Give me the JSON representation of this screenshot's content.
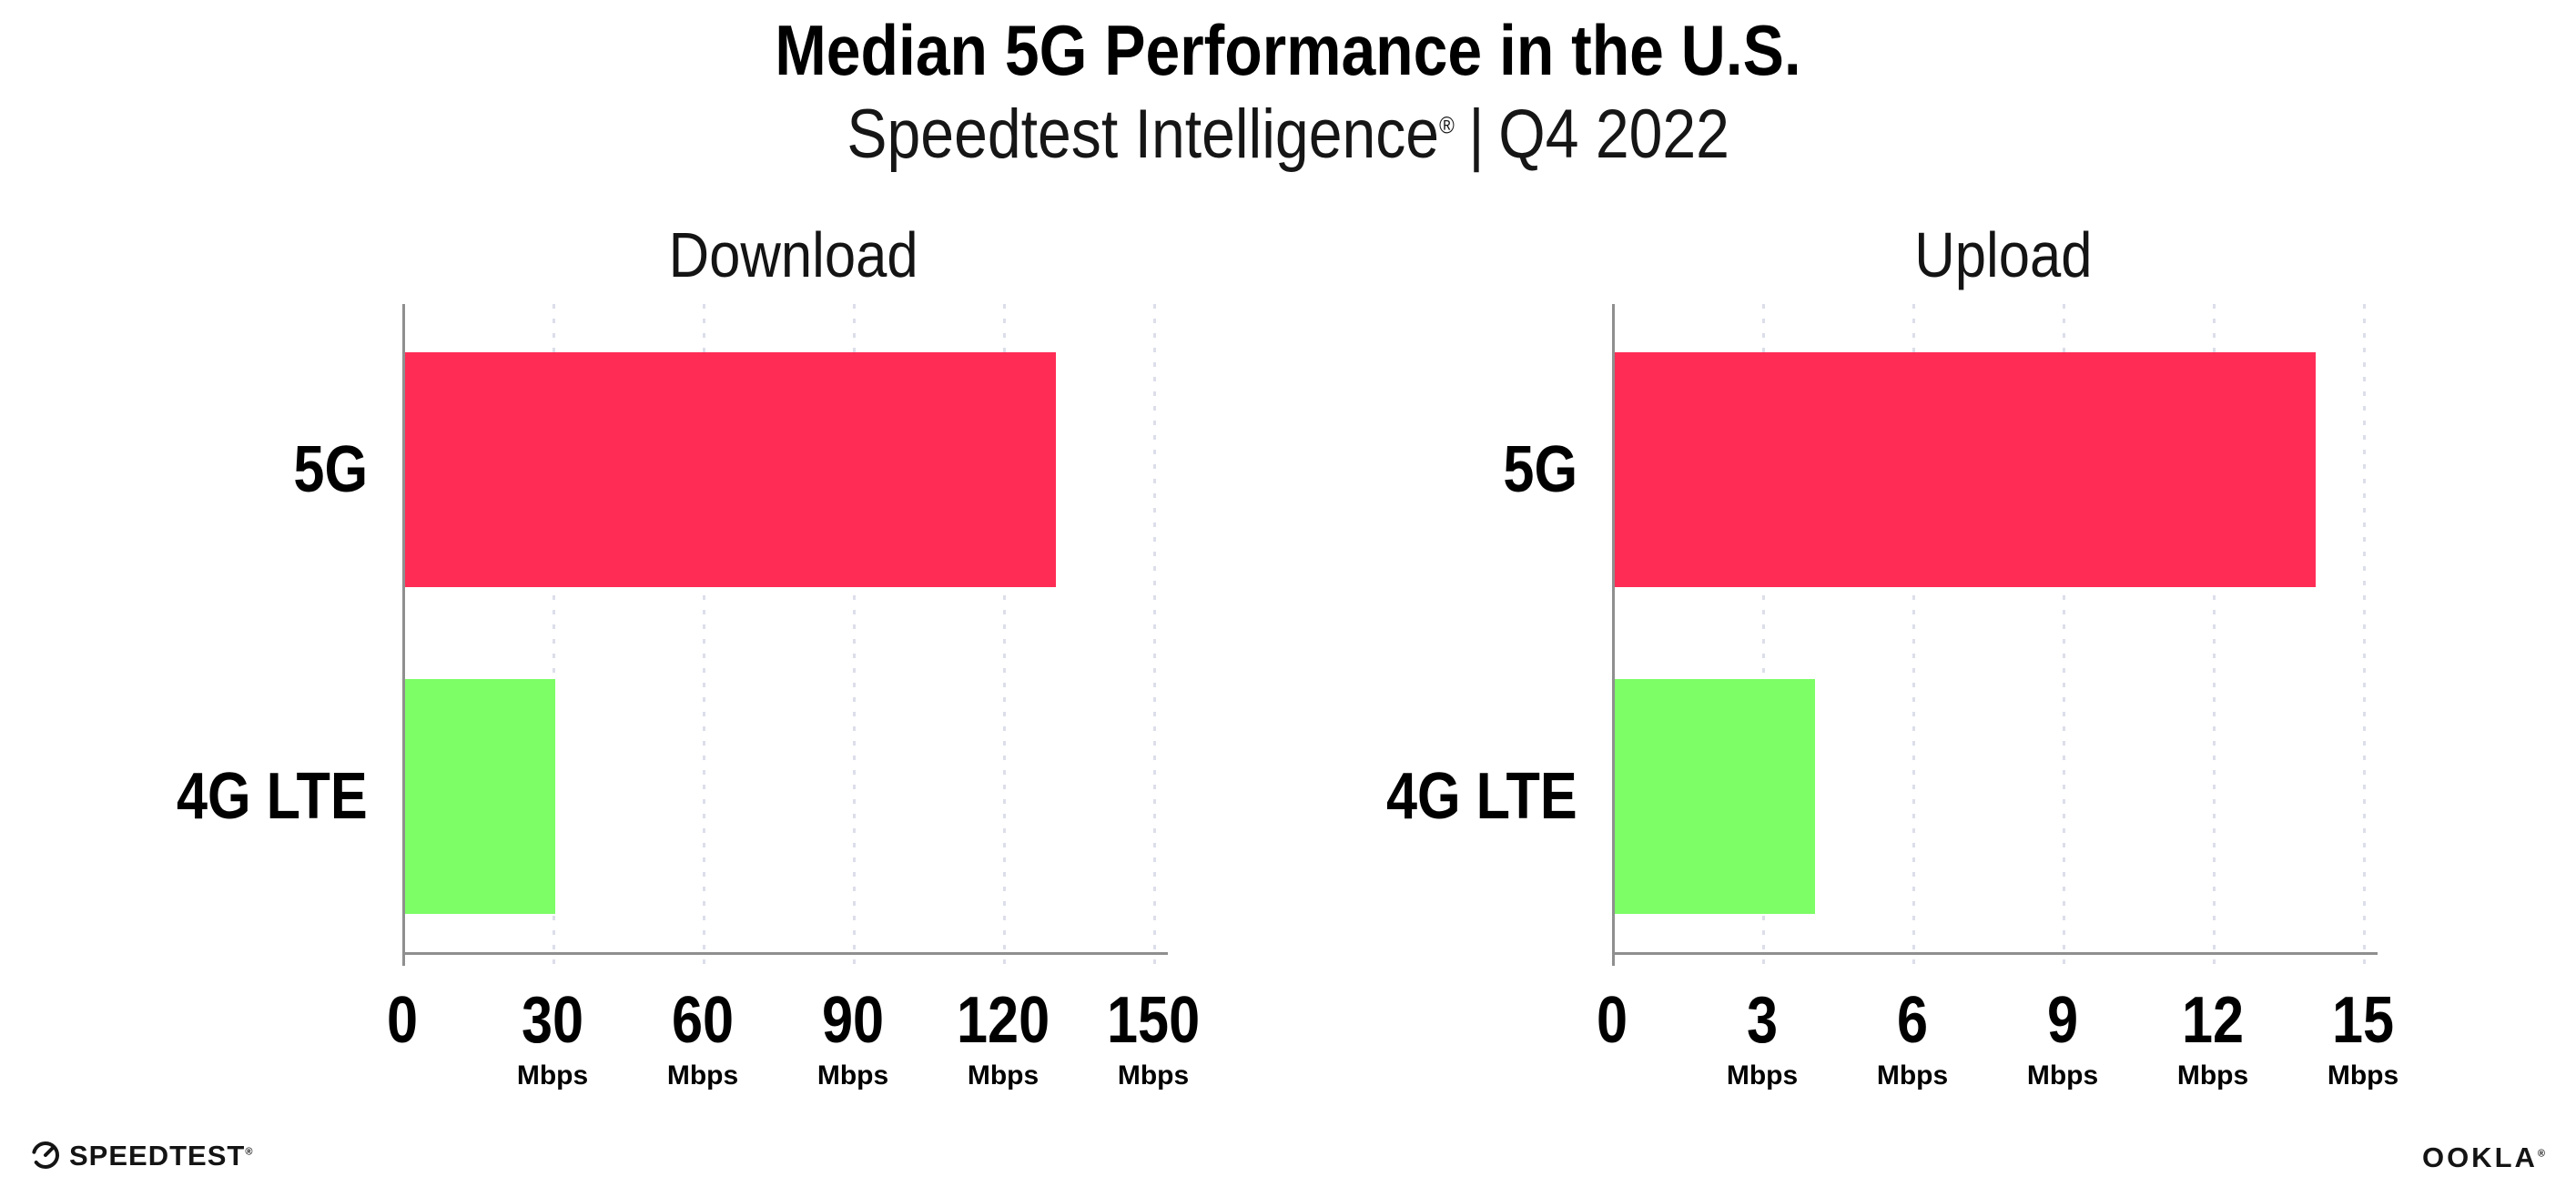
{
  "header": {
    "title": "Median 5G Performance in the U.S.",
    "subtitle": {
      "brand": "Speedtest Intelligence",
      "registered_mark": "®",
      "separator": "|",
      "period": "Q4 2022"
    }
  },
  "chart_data": [
    {
      "type": "bar",
      "orientation": "horizontal",
      "title": "Download",
      "categories": [
        "5G",
        "4G LTE"
      ],
      "values": [
        130,
        30
      ],
      "unit": "Mbps",
      "bar_colors": [
        "#ff2d55",
        "#7dfd66"
      ],
      "xlim": [
        0,
        150
      ],
      "xticks": [
        0,
        30,
        60,
        90,
        120,
        150
      ],
      "xtick_unit": "Mbps",
      "grid": "vertical dotted",
      "legend": "none"
    },
    {
      "type": "bar",
      "orientation": "horizontal",
      "title": "Upload",
      "categories": [
        "5G",
        "4G LTE"
      ],
      "values": [
        14,
        4
      ],
      "unit": "Mbps",
      "bar_colors": [
        "#ff2d55",
        "#7dfd66"
      ],
      "xlim": [
        0,
        15
      ],
      "xticks": [
        0,
        3,
        6,
        9,
        12,
        15
      ],
      "xtick_unit": "Mbps",
      "grid": "vertical dotted",
      "legend": "none"
    }
  ],
  "colors": {
    "bar_5g": "#ff2d55",
    "bar_4g_lte": "#7dfd66",
    "axis": "#8f8f8f",
    "gridline": "#dcdeea",
    "text": "#000000"
  },
  "footer": {
    "speedtest_logo": {
      "label": "SPEEDTEST",
      "registered_mark": "®"
    },
    "ookla_logo": {
      "label": "OOKLA",
      "registered_mark": "®"
    }
  }
}
